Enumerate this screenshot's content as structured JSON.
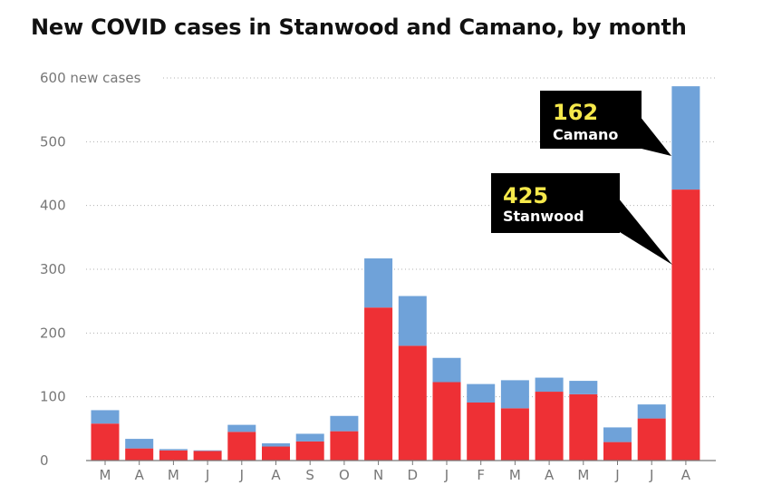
{
  "title": "New COVID cases in Stanwood and Camano, by month",
  "chart_data": {
    "type": "bar",
    "stacked": true,
    "categories": [
      "M",
      "A",
      "M",
      "J",
      "J",
      "A",
      "S",
      "O",
      "N",
      "D",
      "J",
      "F",
      "M",
      "A",
      "M",
      "J",
      "J",
      "A"
    ],
    "series": [
      {
        "name": "Stanwood",
        "color": "#ee3035",
        "values": [
          58,
          19,
          16,
          15,
          45,
          22,
          30,
          46,
          240,
          180,
          123,
          91,
          82,
          108,
          104,
          29,
          66,
          425
        ]
      },
      {
        "name": "Camano",
        "color": "#6fa2d9",
        "values": [
          21,
          15,
          2,
          1,
          11,
          5,
          12,
          24,
          77,
          78,
          38,
          29,
          44,
          22,
          21,
          23,
          22,
          162
        ]
      }
    ],
    "ylim": [
      0,
      600
    ],
    "yticks": [
      0,
      100,
      200,
      300,
      400,
      500,
      600
    ],
    "ytick_labels": [
      "0",
      "100",
      "200",
      "300",
      "400",
      "500",
      "600 new cases"
    ],
    "grid": true,
    "annotations": [
      {
        "value": "162",
        "label": "Camano"
      },
      {
        "value": "425",
        "label": "Stanwood"
      }
    ]
  }
}
